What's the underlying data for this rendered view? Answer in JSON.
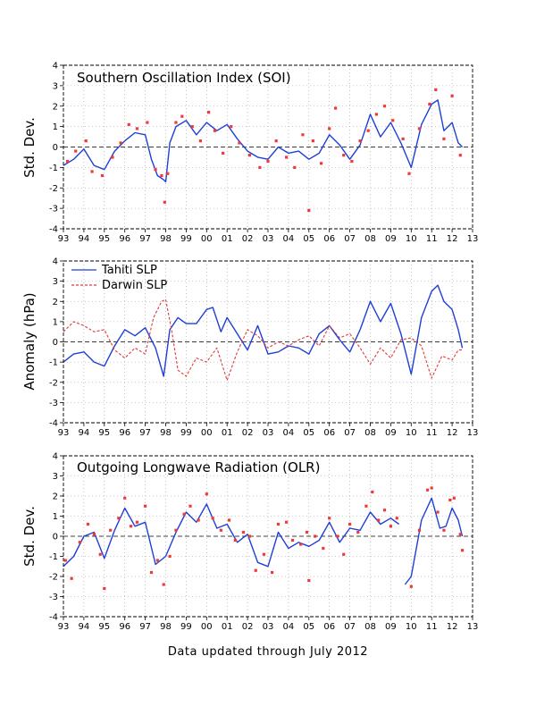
{
  "footer": "Data updated through July 2012",
  "chart_data": [
    {
      "type": "line",
      "title": "Southern Oscillation Index (SOI)",
      "ylabel": "Std. Dev.",
      "xlim": [
        1993,
        2013
      ],
      "ylim": [
        -4,
        4
      ],
      "x_ticks": [
        1993,
        1994,
        1995,
        1996,
        1997,
        1998,
        1999,
        2000,
        2001,
        2002,
        2003,
        2004,
        2005,
        2006,
        2007,
        2008,
        2009,
        2010,
        2011,
        2012,
        2013
      ],
      "x_tick_labels": [
        "93",
        "94",
        "95",
        "96",
        "97",
        "98",
        "99",
        "00",
        "01",
        "02",
        "03",
        "04",
        "05",
        "06",
        "07",
        "08",
        "09",
        "10",
        "11",
        "12",
        "13"
      ],
      "y_ticks": [
        -4,
        -3,
        -2,
        -1,
        0,
        1,
        2,
        3,
        4
      ],
      "grid": true,
      "series": [
        {
          "kind": "smoothed line",
          "color": "#1f3fd6",
          "x": [
            1993.0,
            1993.5,
            1994.0,
            1994.5,
            1995.0,
            1995.5,
            1996.0,
            1996.5,
            1997.0,
            1997.3,
            1997.6,
            1997.9,
            1998.0,
            1998.2,
            1998.5,
            1999.0,
            1999.5,
            2000.0,
            2000.5,
            2001.0,
            2001.5,
            2002.0,
            2002.5,
            2003.0,
            2003.5,
            2004.0,
            2004.5,
            2005.0,
            2005.5,
            2006.0,
            2006.5,
            2007.0,
            2007.5,
            2008.0,
            2008.5,
            2009.0,
            2009.5,
            2010.0,
            2010.5,
            2011.0,
            2011.3,
            2011.6,
            2012.0,
            2012.3,
            2012.5
          ],
          "y": [
            -0.9,
            -0.6,
            -0.1,
            -0.9,
            -1.1,
            -0.2,
            0.3,
            0.7,
            0.6,
            -0.6,
            -1.4,
            -1.6,
            -1.7,
            0.2,
            1.0,
            1.3,
            0.6,
            1.2,
            0.8,
            1.1,
            0.4,
            -0.2,
            -0.5,
            -0.6,
            0.0,
            -0.3,
            -0.2,
            -0.6,
            -0.3,
            0.6,
            0.1,
            -0.6,
            0.1,
            1.6,
            0.5,
            1.2,
            0.2,
            -1.0,
            1.1,
            2.1,
            2.3,
            0.8,
            1.2,
            0.2,
            0.0
          ]
        },
        {
          "kind": "monthly points",
          "color": "#f03a3a",
          "x": [
            1993.2,
            1993.6,
            1994.1,
            1994.4,
            1994.9,
            1995.4,
            1995.8,
            1996.2,
            1996.6,
            1997.1,
            1997.5,
            1997.8,
            1997.95,
            1998.1,
            1998.5,
            1998.8,
            1999.3,
            1999.7,
            2000.1,
            2000.4,
            2000.8,
            2001.2,
            2001.6,
            2002.1,
            2002.6,
            2003.0,
            2003.4,
            2003.9,
            2004.3,
            2004.7,
            2005.0,
            2005.2,
            2005.6,
            2006.0,
            2006.3,
            2006.7,
            2007.1,
            2007.5,
            2007.9,
            2008.3,
            2008.7,
            2009.1,
            2009.6,
            2009.9,
            2010.4,
            2010.9,
            2011.2,
            2011.6,
            2012.0,
            2012.4
          ],
          "y": [
            -0.7,
            -0.2,
            0.3,
            -1.2,
            -1.4,
            -0.5,
            0.2,
            1.1,
            0.9,
            1.2,
            -1.1,
            -1.4,
            -2.7,
            -1.3,
            1.2,
            1.5,
            1.0,
            0.3,
            1.7,
            0.8,
            -0.3,
            1.0,
            0.2,
            -0.4,
            -1.0,
            -0.7,
            0.3,
            -0.5,
            -1.0,
            0.6,
            -3.1,
            0.3,
            -0.8,
            0.9,
            1.9,
            -0.4,
            -0.7,
            0.3,
            0.8,
            1.6,
            2.0,
            1.3,
            0.4,
            -1.3,
            0.9,
            2.1,
            2.8,
            0.4,
            2.5,
            -0.4
          ]
        }
      ]
    },
    {
      "type": "line",
      "title": "",
      "ylabel": "Anomaly (hPa)",
      "xlim": [
        1993,
        2013
      ],
      "ylim": [
        -4,
        4
      ],
      "x_ticks": [
        1993,
        1994,
        1995,
        1996,
        1997,
        1998,
        1999,
        2000,
        2001,
        2002,
        2003,
        2004,
        2005,
        2006,
        2007,
        2008,
        2009,
        2010,
        2011,
        2012,
        2013
      ],
      "x_tick_labels": [
        "93",
        "94",
        "95",
        "96",
        "97",
        "98",
        "99",
        "00",
        "01",
        "02",
        "03",
        "04",
        "05",
        "06",
        "07",
        "08",
        "09",
        "10",
        "11",
        "12",
        "13"
      ],
      "y_ticks": [
        -4,
        -3,
        -2,
        -1,
        0,
        1,
        2,
        3,
        4
      ],
      "grid": true,
      "legend_position": "top-left",
      "series": [
        {
          "name": "Tahiti SLP",
          "kind": "solid line",
          "color": "#1f3fd6",
          "x": [
            1993.0,
            1993.5,
            1994.0,
            1994.5,
            1995.0,
            1995.5,
            1996.0,
            1996.5,
            1997.0,
            1997.5,
            1997.9,
            1998.2,
            1998.6,
            1999.0,
            1999.5,
            2000.0,
            2000.3,
            2000.7,
            2001.0,
            2001.5,
            2002.0,
            2002.5,
            2003.0,
            2003.5,
            2004.0,
            2004.5,
            2005.0,
            2005.5,
            2006.0,
            2006.5,
            2007.0,
            2007.5,
            2008.0,
            2008.5,
            2009.0,
            2009.5,
            2010.0,
            2010.5,
            2011.0,
            2011.3,
            2011.6,
            2012.0,
            2012.3,
            2012.5
          ],
          "y": [
            -1.0,
            -0.6,
            -0.5,
            -1.0,
            -1.2,
            -0.2,
            0.6,
            0.3,
            0.7,
            -0.3,
            -1.7,
            0.6,
            1.2,
            0.9,
            0.9,
            1.6,
            1.7,
            0.5,
            1.2,
            0.4,
            -0.4,
            0.8,
            -0.6,
            -0.5,
            -0.2,
            -0.3,
            -0.6,
            0.4,
            0.8,
            0.1,
            -0.5,
            0.6,
            2.0,
            1.0,
            1.9,
            0.4,
            -1.6,
            1.2,
            2.5,
            2.8,
            2.0,
            1.6,
            0.6,
            -0.3
          ]
        },
        {
          "name": "Darwin SLP",
          "kind": "dashed line",
          "color": "#e03a3a",
          "x": [
            1993.0,
            1993.5,
            1994.0,
            1994.5,
            1995.0,
            1995.5,
            1996.0,
            1996.5,
            1997.0,
            1997.4,
            1997.8,
            1998.0,
            1998.3,
            1998.6,
            1999.0,
            1999.5,
            2000.0,
            2000.5,
            2001.0,
            2001.5,
            2002.0,
            2002.5,
            2003.0,
            2003.5,
            2004.0,
            2004.5,
            2005.0,
            2005.5,
            2006.0,
            2006.5,
            2007.0,
            2007.5,
            2008.0,
            2008.5,
            2009.0,
            2009.5,
            2010.0,
            2010.5,
            2011.0,
            2011.5,
            2012.0,
            2012.3,
            2012.5
          ],
          "y": [
            0.5,
            1.0,
            0.8,
            0.5,
            0.6,
            -0.4,
            -0.8,
            -0.3,
            -0.6,
            1.2,
            2.0,
            2.1,
            0.5,
            -1.4,
            -1.7,
            -0.8,
            -1.0,
            -0.3,
            -1.9,
            -0.5,
            0.6,
            0.3,
            -0.3,
            0.0,
            -0.2,
            0.1,
            0.3,
            -0.2,
            0.8,
            0.2,
            0.4,
            -0.3,
            -1.1,
            -0.3,
            -0.8,
            0.1,
            0.2,
            -0.2,
            -1.8,
            -0.7,
            -0.9,
            -0.4,
            -0.4
          ]
        }
      ]
    },
    {
      "type": "line",
      "title": "Outgoing Longwave Radiation (OLR)",
      "ylabel": "Std. Dev.",
      "xlim": [
        1993,
        2013
      ],
      "ylim": [
        -4,
        4
      ],
      "x_ticks": [
        1993,
        1994,
        1995,
        1996,
        1997,
        1998,
        1999,
        2000,
        2001,
        2002,
        2003,
        2004,
        2005,
        2006,
        2007,
        2008,
        2009,
        2010,
        2011,
        2012,
        2013
      ],
      "x_tick_labels": [
        "93",
        "94",
        "95",
        "96",
        "97",
        "98",
        "99",
        "00",
        "01",
        "02",
        "03",
        "04",
        "05",
        "06",
        "07",
        "08",
        "09",
        "10",
        "11",
        "12",
        "13"
      ],
      "y_ticks": [
        -4,
        -3,
        -2,
        -1,
        0,
        1,
        2,
        3,
        4
      ],
      "grid": true,
      "series": [
        {
          "kind": "smoothed line",
          "color": "#1f3fd6",
          "segments": [
            {
              "x": [
                1993.0,
                1993.5,
                1994.0,
                1994.5,
                1995.0,
                1995.5,
                1996.0,
                1996.5,
                1997.0,
                1997.5,
                1998.0,
                1998.5,
                1999.0,
                1999.5,
                2000.0,
                2000.5,
                2001.0,
                2001.5,
                2002.0,
                2002.5,
                2003.0,
                2003.5,
                2004.0,
                2004.5,
                2005.0,
                2005.5,
                2006.0,
                2006.5,
                2007.0,
                2007.5,
                2008.0,
                2008.5,
                2009.0,
                2009.4
              ],
              "y": [
                -1.5,
                -1.0,
                0.0,
                0.2,
                -1.1,
                0.3,
                1.4,
                0.5,
                0.7,
                -1.4,
                -1.0,
                0.2,
                1.2,
                0.7,
                1.6,
                0.4,
                0.6,
                -0.3,
                0.1,
                -1.3,
                -1.5,
                0.2,
                -0.6,
                -0.3,
                -0.5,
                -0.2,
                0.7,
                -0.3,
                0.4,
                0.3,
                1.2,
                0.6,
                0.9,
                0.6
              ]
            },
            {
              "x": [
                2009.7,
                2010.0,
                2010.5,
                2011.0,
                2011.4,
                2011.7,
                2012.0,
                2012.3,
                2012.5
              ],
              "y": [
                -2.4,
                -2.0,
                0.8,
                1.9,
                0.4,
                0.5,
                1.4,
                0.8,
                0.0
              ]
            }
          ]
        },
        {
          "kind": "monthly points",
          "color": "#f03a3a",
          "x": [
            1993.1,
            1993.4,
            1993.8,
            1994.2,
            1994.5,
            1994.8,
            1995.0,
            1995.3,
            1995.7,
            1996.0,
            1996.3,
            1996.6,
            1997.0,
            1997.3,
            1997.6,
            1997.9,
            1998.2,
            1998.5,
            1998.9,
            1999.2,
            1999.6,
            2000.0,
            2000.3,
            2000.7,
            2001.1,
            2001.4,
            2001.8,
            2002.1,
            2002.4,
            2002.8,
            2003.2,
            2003.5,
            2003.9,
            2004.2,
            2004.6,
            2004.9,
            2005.0,
            2005.3,
            2005.7,
            2006.0,
            2006.4,
            2006.7,
            2007.0,
            2007.4,
            2007.8,
            2008.1,
            2008.4,
            2008.7,
            2009.0,
            2009.3,
            2010.0,
            2010.4,
            2010.8,
            2011.0,
            2011.3,
            2011.6,
            2011.9,
            2012.1,
            2012.4,
            2012.5
          ],
          "y": [
            -1.2,
            -2.1,
            -0.3,
            0.6,
            0.1,
            -0.9,
            -2.6,
            0.3,
            0.9,
            1.9,
            0.5,
            0.7,
            1.5,
            -1.8,
            -1.2,
            -2.4,
            -1.0,
            0.3,
            1.1,
            1.5,
            0.8,
            2.1,
            0.9,
            0.3,
            0.8,
            -0.2,
            0.2,
            0.0,
            -1.7,
            -0.9,
            -1.8,
            0.6,
            0.7,
            -0.2,
            -0.4,
            0.2,
            -2.2,
            0.0,
            -0.6,
            0.9,
            0.0,
            -0.9,
            0.6,
            0.2,
            1.5,
            2.2,
            0.8,
            1.3,
            0.5,
            0.9,
            -2.5,
            0.3,
            2.3,
            2.4,
            1.2,
            0.3,
            1.8,
            1.9,
            0.1,
            -0.7
          ]
        }
      ]
    }
  ]
}
